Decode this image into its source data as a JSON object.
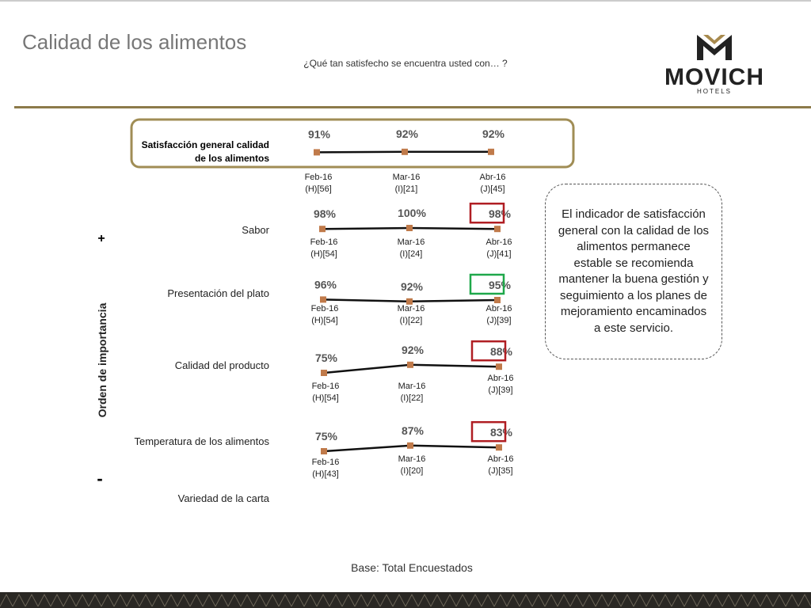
{
  "header": {
    "title": "Calidad de los alimentos",
    "subtitle": "¿Qué tan satisfecho se encuentra usted con… ?"
  },
  "logo": {
    "name": "MOVICH",
    "sub": "HOTELS"
  },
  "axis_label": "Orden de importancia",
  "axis_plus": "+",
  "axis_minus": "-",
  "chart_data": [
    {
      "type": "line",
      "title": "Satisfacción general calidad de los alimentos",
      "categories": [
        "Feb-16",
        "Mar-16",
        "Abr-16"
      ],
      "bases": [
        "(H)[56]",
        "(I)[21]",
        "(J)[45]"
      ],
      "values": [
        91,
        92,
        92
      ],
      "value_labels": [
        "91%",
        "92%",
        "92%"
      ]
    },
    {
      "type": "line",
      "title": "Sabor",
      "categories": [
        "Feb-16",
        "Mar-16",
        "Abr-16"
      ],
      "bases": [
        "(H)[54]",
        "(I)[24]",
        "(J)[41]"
      ],
      "values": [
        98,
        100,
        98
      ],
      "value_labels": [
        "98%",
        "100%",
        "98%"
      ],
      "highlight_color": "#b01e23"
    },
    {
      "type": "line",
      "title": "Presentación del plato",
      "categories": [
        "Feb-16",
        "Mar-16",
        "Abr-16"
      ],
      "bases": [
        "(H)[54]",
        "(I)[22]",
        "(J)[39]"
      ],
      "values": [
        96,
        92,
        95
      ],
      "value_labels": [
        "96%",
        "92%",
        "95%"
      ],
      "highlight_color": "#1fa84a"
    },
    {
      "type": "line",
      "title": "Calidad del producto",
      "categories": [
        "Feb-16",
        "Mar-16",
        "Abr-16"
      ],
      "bases": [
        "(H)[54]",
        "(I)[22]",
        "(J)[39]"
      ],
      "values": [
        75,
        92,
        88
      ],
      "value_labels": [
        "75%",
        "92%",
        "88%"
      ],
      "highlight_color": "#b01e23"
    },
    {
      "type": "line",
      "title": "Temperatura de los alimentos",
      "categories": [
        "Feb-16",
        "Mar-16",
        "Abr-16"
      ],
      "bases": [
        "(H)[43]",
        "(I)[20]",
        "(J)[35]"
      ],
      "values": [
        75,
        87,
        83
      ],
      "value_labels": [
        "75%",
        "87%",
        "83%"
      ],
      "highlight_color": "#b01e23"
    }
  ],
  "extra_row": "Variedad de la carta",
  "note": "El indicador de satisfacción general con la calidad de los alimentos permanece estable se recomienda mantener la buena gestión y seguimiento a los planes de mejoramiento encaminados a este servicio.",
  "footer": "Base: Total Encuestados"
}
